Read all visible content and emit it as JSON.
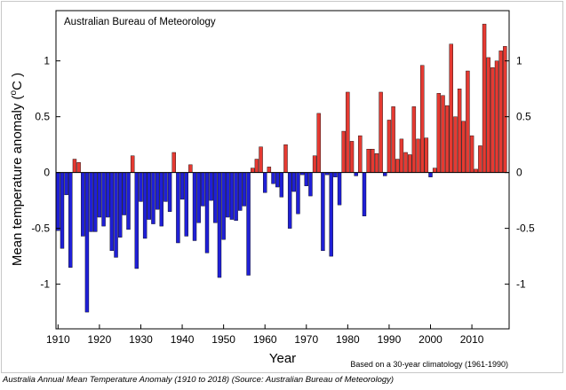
{
  "caption": "Australia Annual Mean Temperature Anomaly (1910 to 2018) (Source: Australian Bureau of Meteorology)",
  "chart_data": {
    "type": "bar",
    "title": "",
    "inner_label": "Australian Bureau of Meteorology",
    "note": "Based on a 30-year climatology (1961-1990)",
    "xlabel": "Year",
    "ylabel": "Mean temperature anomaly (°C)",
    "ylabel_parts": {
      "prefix": "Mean temperature anomaly (",
      "unit_sup": "o",
      "unit": "C )"
    },
    "x_start": 1910,
    "x_end": 2018,
    "xlim": [
      1909.5,
      2019.0
    ],
    "ylim": [
      -1.4,
      1.45
    ],
    "xticks": [
      1910,
      1920,
      1930,
      1940,
      1950,
      1960,
      1970,
      1980,
      1990,
      2000,
      2010
    ],
    "yticks": [
      {
        "value": 1,
        "label": "1"
      },
      {
        "value": 0.5,
        "label": "0.5"
      },
      {
        "value": 0,
        "label": "0"
      },
      {
        "value": -0.5,
        "label": "-0.5"
      },
      {
        "value": -1,
        "label": "-1"
      }
    ],
    "colors": {
      "positive": "#e53a32",
      "negative": "#1f1fd6",
      "axis": "#000000"
    },
    "values": [
      -0.52,
      -0.68,
      -0.2,
      -0.85,
      0.12,
      0.09,
      -0.57,
      -1.25,
      -0.53,
      -0.53,
      -0.4,
      -0.48,
      -0.4,
      -0.7,
      -0.76,
      -0.58,
      -0.38,
      -0.51,
      0.15,
      -0.86,
      -0.26,
      -0.59,
      -0.42,
      -0.46,
      -0.33,
      -0.48,
      -0.26,
      -0.35,
      0.18,
      -0.63,
      -0.24,
      -0.57,
      0.07,
      -0.61,
      -0.45,
      -0.3,
      -0.72,
      -0.25,
      -0.45,
      -0.94,
      -0.6,
      -0.4,
      -0.42,
      -0.43,
      -0.34,
      -0.3,
      -0.92,
      0.04,
      0.12,
      0.23,
      -0.18,
      0.05,
      -0.1,
      -0.13,
      -0.22,
      0.25,
      -0.5,
      -0.17,
      -0.37,
      -0.02,
      -0.12,
      -0.21,
      0.15,
      0.53,
      -0.7,
      -0.02,
      -0.75,
      -0.04,
      -0.29,
      0.37,
      0.72,
      0.28,
      -0.03,
      0.33,
      -0.39,
      0.21,
      0.21,
      0.17,
      0.72,
      -0.03,
      0.47,
      0.59,
      0.12,
      0.3,
      0.18,
      0.16,
      0.59,
      0.3,
      0.96,
      0.31,
      -0.04,
      0.04,
      0.71,
      0.69,
      0.6,
      1.15,
      0.5,
      0.75,
      0.46,
      0.91,
      0.33,
      0.03,
      0.24,
      1.33,
      1.03,
      0.94,
      1.0,
      1.09,
      1.13
    ]
  }
}
